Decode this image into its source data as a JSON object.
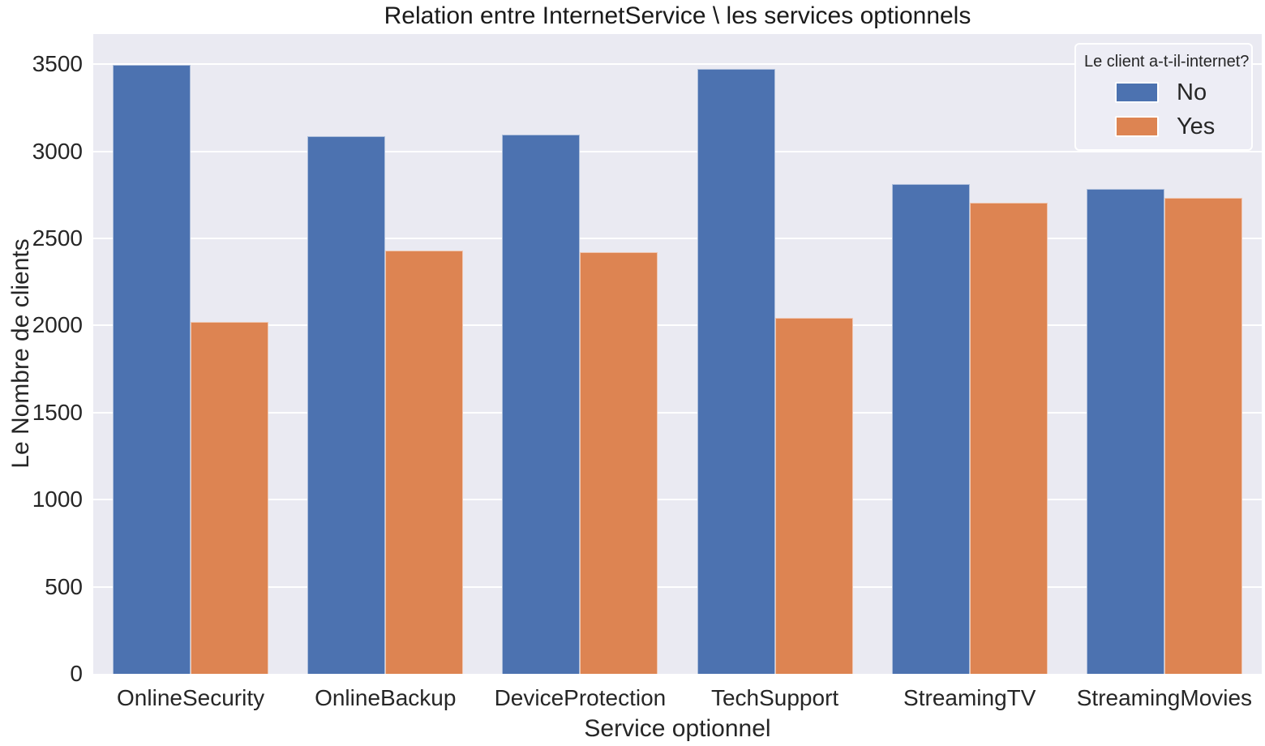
{
  "chart_data": {
    "type": "bar",
    "title": "Relation entre InternetService \\ les services optionnels",
    "xlabel": "Service optionnel",
    "ylabel": "Le Nombre de clients",
    "categories": [
      "OnlineSecurity",
      "OnlineBackup",
      "DeviceProtection",
      "TechSupport",
      "StreamingTV",
      "StreamingMovies"
    ],
    "series": [
      {
        "name": "No",
        "color": "#4C72B0",
        "values": [
          3498,
          3088,
          3095,
          3473,
          2810,
          2785
        ]
      },
      {
        "name": "Yes",
        "color": "#DD8452",
        "values": [
          2019,
          2429,
          2422,
          2044,
          2707,
          2732
        ]
      }
    ],
    "legend_title": "Le client a-t-il-internet?",
    "legend_position": "upper right",
    "ylim": [
      0,
      3673
    ],
    "yticks": [
      0,
      500,
      1000,
      1500,
      2000,
      2500,
      3000,
      3500
    ],
    "grid": "horizontal",
    "group_gap_fraction": 0.2,
    "colors": {
      "figure_bg": "#FFFFFF",
      "plot_bg": "#EAEAF2",
      "gridline": "#FFFFFF",
      "text": "#262626",
      "series_no": "#4C72B0",
      "series_yes": "#DD8452"
    }
  }
}
